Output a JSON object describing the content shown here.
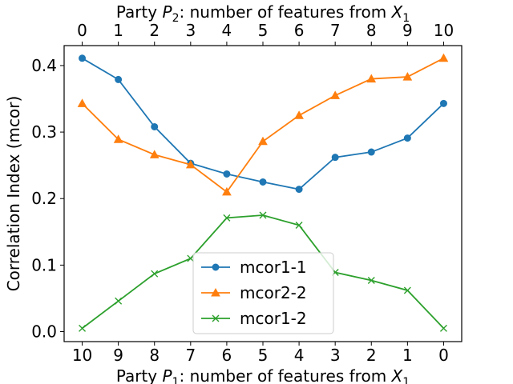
{
  "chart_data": {
    "type": "line",
    "x_bottom": {
      "label_prefix": "Party ",
      "label_sym": "P",
      "label_sub": "1",
      "label_mid": ": number of features from ",
      "label_sym2": "X",
      "label_sub2": "1",
      "ticks": [
        "10",
        "9",
        "8",
        "7",
        "6",
        "5",
        "4",
        "3",
        "2",
        "1",
        "0"
      ]
    },
    "x_top": {
      "label_prefix": "Party ",
      "label_sym": "P",
      "label_sub": "2",
      "label_mid": ": number of features from ",
      "label_sym2": "X",
      "label_sub2": "1",
      "ticks": [
        "0",
        "1",
        "2",
        "3",
        "4",
        "5",
        "6",
        "7",
        "8",
        "9",
        "10"
      ]
    },
    "x": [
      0,
      1,
      2,
      3,
      4,
      5,
      6,
      7,
      8,
      9,
      10
    ],
    "ylabel": "Correlation Index (mcor)",
    "ylim": [
      -0.015,
      0.43
    ],
    "yticks": [
      "0.0",
      "0.1",
      "0.2",
      "0.3",
      "0.4"
    ],
    "ytick_values": [
      0.0,
      0.1,
      0.2,
      0.3,
      0.4
    ],
    "grid": false,
    "legend_position": "lower-center",
    "series": [
      {
        "name": "mcor1-1",
        "color": "#1f77b4",
        "marker": "circle",
        "values": [
          0.411,
          0.379,
          0.308,
          0.253,
          0.237,
          0.225,
          0.214,
          0.262,
          0.27,
          0.291,
          0.343
        ]
      },
      {
        "name": "mcor2-2",
        "color": "#ff7f0e",
        "marker": "triangle",
        "values": [
          0.343,
          0.289,
          0.266,
          0.251,
          0.21,
          0.286,
          0.325,
          0.355,
          0.38,
          0.383,
          0.411
        ]
      },
      {
        "name": "mcor1-2",
        "color": "#2ca02c",
        "marker": "x",
        "values": [
          0.005,
          0.046,
          0.087,
          0.11,
          0.171,
          0.175,
          0.16,
          0.089,
          0.077,
          0.062,
          0.005
        ]
      }
    ]
  }
}
